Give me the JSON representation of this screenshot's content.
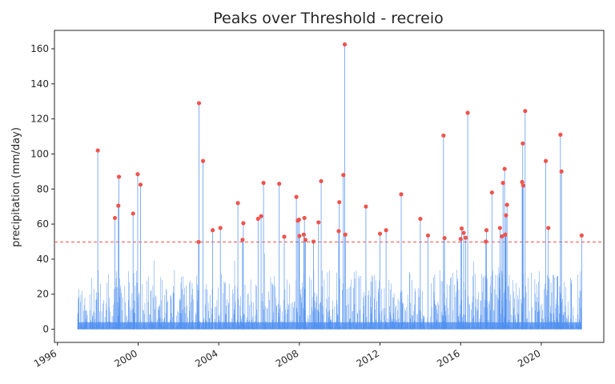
{
  "chart_data": {
    "type": "line",
    "title": "Peaks over Threshold - recreio",
    "xlabel": "",
    "ylabel": "precipitation (mm/day)",
    "xlim": [
      1995.85,
      2023.1
    ],
    "ylim": [
      -7.5,
      170.5
    ],
    "x_ticks": [
      1996,
      2000,
      2004,
      2008,
      2012,
      2016,
      2020
    ],
    "y_ticks": [
      0,
      20,
      40,
      60,
      80,
      100,
      120,
      140,
      160
    ],
    "grid": false,
    "threshold": 49.8,
    "series": [
      {
        "style": "bar",
        "x_range": [
          1997.0,
          2022.0
        ],
        "color": "#4c8ef0",
        "peaks": [
          {
            "x": 1998.0,
            "y": 102.0
          },
          {
            "x": 1998.85,
            "y": 63.5
          },
          {
            "x": 1999.02,
            "y": 70.5
          },
          {
            "x": 1999.05,
            "y": 87.0
          },
          {
            "x": 1999.75,
            "y": 66.0
          },
          {
            "x": 1999.98,
            "y": 88.5
          },
          {
            "x": 2000.12,
            "y": 82.5
          },
          {
            "x": 2003.0,
            "y": 49.8
          },
          {
            "x": 2003.02,
            "y": 129.0
          },
          {
            "x": 2003.22,
            "y": 96.0
          },
          {
            "x": 2003.7,
            "y": 56.5
          },
          {
            "x": 2004.08,
            "y": 57.8
          },
          {
            "x": 2004.95,
            "y": 72.0
          },
          {
            "x": 2005.18,
            "y": 51.0
          },
          {
            "x": 2005.22,
            "y": 60.5
          },
          {
            "x": 2005.95,
            "y": 63.0
          },
          {
            "x": 2006.1,
            "y": 64.5
          },
          {
            "x": 2006.22,
            "y": 83.5
          },
          {
            "x": 2007.0,
            "y": 83.0
          },
          {
            "x": 2007.25,
            "y": 52.8
          },
          {
            "x": 2007.85,
            "y": 75.5
          },
          {
            "x": 2007.92,
            "y": 62.0
          },
          {
            "x": 2007.98,
            "y": 62.5
          },
          {
            "x": 2008.0,
            "y": 53.2
          },
          {
            "x": 2008.22,
            "y": 54.0
          },
          {
            "x": 2008.25,
            "y": 63.5
          },
          {
            "x": 2008.3,
            "y": 51.0
          },
          {
            "x": 2008.7,
            "y": 50.0
          },
          {
            "x": 2008.95,
            "y": 61.0
          },
          {
            "x": 2009.08,
            "y": 84.5
          },
          {
            "x": 2009.95,
            "y": 56.0
          },
          {
            "x": 2009.98,
            "y": 72.5
          },
          {
            "x": 2010.18,
            "y": 88.0
          },
          {
            "x": 2010.25,
            "y": 162.5
          },
          {
            "x": 2010.28,
            "y": 54.0
          },
          {
            "x": 2011.3,
            "y": 70.0
          },
          {
            "x": 2012.0,
            "y": 54.5
          },
          {
            "x": 2012.3,
            "y": 56.5
          },
          {
            "x": 2013.05,
            "y": 77.0
          },
          {
            "x": 2014.0,
            "y": 63.0
          },
          {
            "x": 2014.38,
            "y": 53.5
          },
          {
            "x": 2015.15,
            "y": 110.5
          },
          {
            "x": 2015.2,
            "y": 52.0
          },
          {
            "x": 2016.0,
            "y": 51.5
          },
          {
            "x": 2016.05,
            "y": 57.5
          },
          {
            "x": 2016.15,
            "y": 55.0
          },
          {
            "x": 2016.25,
            "y": 52.2
          },
          {
            "x": 2016.35,
            "y": 123.5
          },
          {
            "x": 2017.25,
            "y": 50.0
          },
          {
            "x": 2017.28,
            "y": 56.5
          },
          {
            "x": 2017.55,
            "y": 78.0
          },
          {
            "x": 2017.95,
            "y": 57.8
          },
          {
            "x": 2018.05,
            "y": 53.0
          },
          {
            "x": 2018.1,
            "y": 83.5
          },
          {
            "x": 2018.18,
            "y": 91.5
          },
          {
            "x": 2018.22,
            "y": 54.0
          },
          {
            "x": 2018.25,
            "y": 65.0
          },
          {
            "x": 2018.3,
            "y": 71.0
          },
          {
            "x": 2019.05,
            "y": 84.0
          },
          {
            "x": 2019.1,
            "y": 82.0
          },
          {
            "x": 2019.08,
            "y": 106.0
          },
          {
            "x": 2019.2,
            "y": 124.5
          },
          {
            "x": 2020.22,
            "y": 96.0
          },
          {
            "x": 2020.35,
            "y": 57.8
          },
          {
            "x": 2020.95,
            "y": 111.0
          },
          {
            "x": 2021.0,
            "y": 90.0
          },
          {
            "x": 2022.0,
            "y": 53.5
          }
        ]
      },
      {
        "style": "scatter",
        "color": "#f0544c"
      }
    ],
    "threshold_color": "#f0544c"
  }
}
